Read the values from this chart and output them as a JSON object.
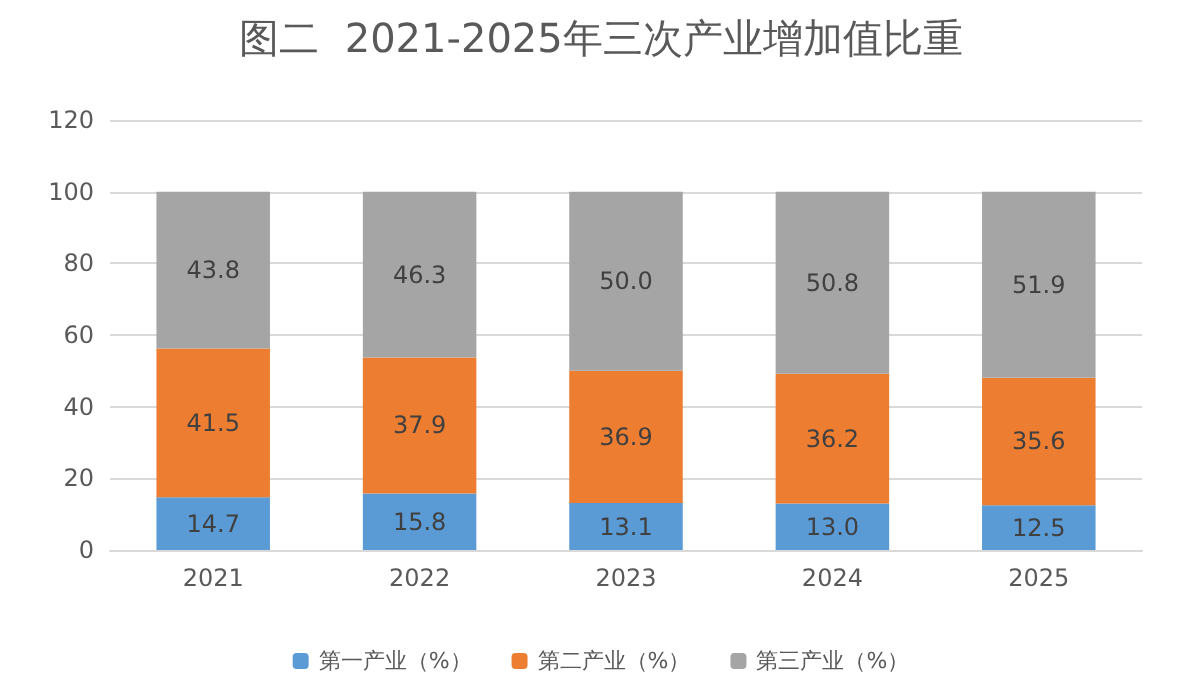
{
  "chart_data": {
    "type": "bar",
    "title": "图二  2021-2025年三次产业增加值比重",
    "categories": [
      "2021",
      "2022",
      "2023",
      "2024",
      "2025"
    ],
    "series": [
      {
        "name": "第一产业（%）",
        "color": "#5b9bd5",
        "values": [
          14.7,
          15.8,
          13.1,
          13.0,
          12.5
        ],
        "value_labels": [
          "14.7",
          "15.8",
          "13.1",
          "13.0",
          "12.5"
        ]
      },
      {
        "name": "第二产业（%）",
        "color": "#ed7d31",
        "values": [
          41.5,
          37.9,
          36.9,
          36.2,
          35.6
        ],
        "value_labels": [
          "41.5",
          "37.9",
          "36.9",
          "36.2",
          "35.6"
        ]
      },
      {
        "name": "第三产业（%）",
        "color": "#a5a5a5",
        "values": [
          43.8,
          46.3,
          50.0,
          50.8,
          51.9
        ],
        "value_labels": [
          "43.8",
          "46.3",
          "50.0",
          "50.8",
          "51.9"
        ]
      }
    ],
    "stacked": true,
    "ylim": [
      0,
      120
    ],
    "yticks": [
      0,
      20,
      40,
      60,
      80,
      100,
      120
    ],
    "grid": "y",
    "legend": "bottom"
  }
}
